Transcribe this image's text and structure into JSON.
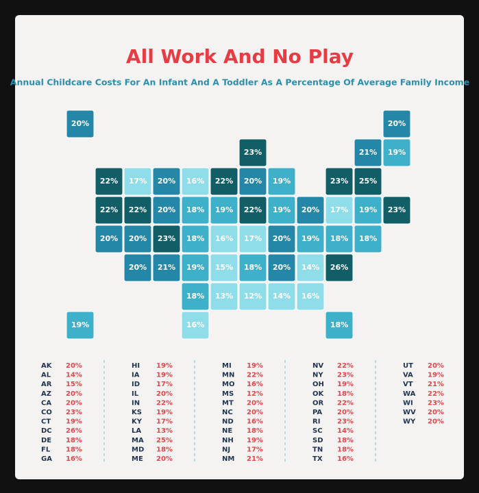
{
  "header": {
    "title": "All Work And No Play",
    "subtitle": "Annual Childcare Costs For An Infant And A Toddler As A Percentage Of Average Family Income"
  },
  "states": [
    {
      "code": "AK",
      "value": 20,
      "label": "20%",
      "color": "#2587a8"
    },
    {
      "code": "AL",
      "value": 14,
      "label": "14%",
      "color": "#8fdde9"
    },
    {
      "code": "AR",
      "value": 15,
      "label": "15%",
      "color": "#8fdde9"
    },
    {
      "code": "AZ",
      "value": 20,
      "label": "20%",
      "color": "#2587a8"
    },
    {
      "code": "CA",
      "value": 20,
      "label": "20%",
      "color": "#2587a8"
    },
    {
      "code": "CO",
      "value": 23,
      "label": "23%",
      "color": "#115e67"
    },
    {
      "code": "CT",
      "value": 19,
      "label": "19%",
      "color": "#3fb0c9"
    },
    {
      "code": "DC",
      "value": 26,
      "label": "26%",
      "color": "#115e67"
    },
    {
      "code": "DE",
      "value": 18,
      "label": "18%",
      "color": "#3fb0c9"
    },
    {
      "code": "FL",
      "value": 18,
      "label": "18%",
      "color": "#3fb0c9"
    },
    {
      "code": "GA",
      "value": 16,
      "label": "16%",
      "color": "#8fdde9"
    },
    {
      "code": "HI",
      "value": 19,
      "label": "19%",
      "color": "#3fb0c9"
    },
    {
      "code": "IA",
      "value": 19,
      "label": "19%",
      "color": "#3fb0c9"
    },
    {
      "code": "ID",
      "value": 17,
      "label": "17%",
      "color": "#8fdde9"
    },
    {
      "code": "IL",
      "value": 20,
      "label": "20%",
      "color": "#2587a8"
    },
    {
      "code": "IN",
      "value": 22,
      "label": "22%",
      "color": "#115e67"
    },
    {
      "code": "KS",
      "value": 19,
      "label": "19%",
      "color": "#3fb0c9"
    },
    {
      "code": "KY",
      "value": 17,
      "label": "17%",
      "color": "#8fdde9"
    },
    {
      "code": "LA",
      "value": 13,
      "label": "13%",
      "color": "#8fdde9"
    },
    {
      "code": "MA",
      "value": 25,
      "label": "25%",
      "color": "#115e67"
    },
    {
      "code": "MD",
      "value": 18,
      "label": "18%",
      "color": "#3fb0c9"
    },
    {
      "code": "ME",
      "value": 20,
      "label": "20%",
      "color": "#2587a8"
    },
    {
      "code": "MI",
      "value": 19,
      "label": "19%",
      "color": "#3fb0c9"
    },
    {
      "code": "MN",
      "value": 22,
      "label": "22%",
      "color": "#115e67"
    },
    {
      "code": "MO",
      "value": 16,
      "label": "16%",
      "color": "#8fdde9"
    },
    {
      "code": "MS",
      "value": 12,
      "label": "12%",
      "color": "#8fdde9"
    },
    {
      "code": "MT",
      "value": 20,
      "label": "20%",
      "color": "#2587a8"
    },
    {
      "code": "NC",
      "value": 20,
      "label": "20%",
      "color": "#2587a8"
    },
    {
      "code": "ND",
      "value": 16,
      "label": "16%",
      "color": "#8fdde9"
    },
    {
      "code": "NE",
      "value": 18,
      "label": "18%",
      "color": "#3fb0c9"
    },
    {
      "code": "NH",
      "value": 19,
      "label": "19%",
      "color": "#3fb0c9"
    },
    {
      "code": "NJ",
      "value": 17,
      "label": "17%",
      "color": "#8fdde9"
    },
    {
      "code": "NM",
      "value": 21,
      "label": "21%",
      "color": "#2587a8"
    },
    {
      "code": "NV",
      "value": 22,
      "label": "22%",
      "color": "#115e67"
    },
    {
      "code": "NY",
      "value": 23,
      "label": "23%",
      "color": "#115e67"
    },
    {
      "code": "OH",
      "value": 19,
      "label": "19%",
      "color": "#3fb0c9"
    },
    {
      "code": "OK",
      "value": 18,
      "label": "18%",
      "color": "#3fb0c9"
    },
    {
      "code": "OR",
      "value": 22,
      "label": "22%",
      "color": "#115e67"
    },
    {
      "code": "PA",
      "value": 20,
      "label": "20%",
      "color": "#2587a8"
    },
    {
      "code": "RI",
      "value": 23,
      "label": "23%",
      "color": "#115e67"
    },
    {
      "code": "SC",
      "value": 14,
      "label": "14%",
      "color": "#8fdde9"
    },
    {
      "code": "SD",
      "value": 18,
      "label": "18%",
      "color": "#3fb0c9"
    },
    {
      "code": "TN",
      "value": 18,
      "label": "18%",
      "color": "#3fb0c9"
    },
    {
      "code": "TX",
      "value": 16,
      "label": "16%",
      "color": "#8fdde9"
    },
    {
      "code": "UT",
      "value": 20,
      "label": "20%",
      "color": "#2587a8"
    },
    {
      "code": "VA",
      "value": 19,
      "label": "19%",
      "color": "#3fb0c9"
    },
    {
      "code": "VT",
      "value": 21,
      "label": "21%",
      "color": "#2587a8"
    },
    {
      "code": "WA",
      "value": 22,
      "label": "22%",
      "color": "#115e67"
    },
    {
      "code": "WI",
      "value": 23,
      "label": "23%",
      "color": "#115e67"
    },
    {
      "code": "WV",
      "value": 20,
      "label": "20%",
      "color": "#2587a8"
    },
    {
      "code": "WY",
      "value": 20,
      "label": "20%",
      "color": "#2587a8"
    }
  ]
}
